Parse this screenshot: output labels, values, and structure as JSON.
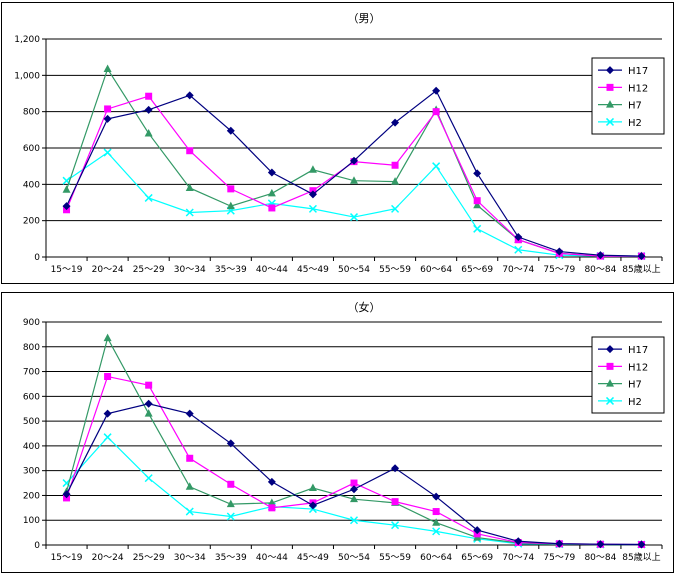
{
  "chart_data": [
    {
      "type": "line",
      "title": "（男）",
      "categories": [
        "15～19",
        "20～24",
        "25～29",
        "30～34",
        "35～39",
        "40～44",
        "45～49",
        "50～54",
        "55～59",
        "60～64",
        "65～69",
        "70～74",
        "75～79",
        "80～84",
        "85歳以上"
      ],
      "ylim": [
        0,
        1200
      ],
      "yticks": [
        0,
        200,
        400,
        600,
        800,
        1000,
        1200
      ],
      "ytick_labels": [
        "0",
        "200",
        "400",
        "600",
        "800",
        "1,000",
        "1,200"
      ],
      "grid": true,
      "legend": "right",
      "series": [
        {
          "name": "H17",
          "color": "#000080",
          "marker": "diamond",
          "values": [
            280,
            760,
            810,
            890,
            695,
            465,
            345,
            530,
            740,
            915,
            460,
            110,
            30,
            10,
            5
          ]
        },
        {
          "name": "H12",
          "color": "#ff00ff",
          "marker": "square",
          "values": [
            260,
            815,
            885,
            585,
            375,
            270,
            365,
            525,
            505,
            800,
            310,
            95,
            20,
            5,
            5
          ]
        },
        {
          "name": "H7",
          "color": "#339966",
          "marker": "triangle",
          "values": [
            370,
            1035,
            680,
            380,
            280,
            350,
            480,
            420,
            415,
            810,
            285,
            95,
            20,
            5,
            5
          ]
        },
        {
          "name": "H2",
          "color": "#00ffff",
          "marker": "x",
          "values": [
            420,
            575,
            325,
            245,
            255,
            295,
            265,
            220,
            265,
            500,
            155,
            40,
            10,
            5,
            5
          ]
        }
      ]
    },
    {
      "type": "line",
      "title": "（女）",
      "categories": [
        "15～19",
        "20～24",
        "25～29",
        "30～34",
        "35～39",
        "40～44",
        "45～49",
        "50～54",
        "55～59",
        "60～64",
        "65～69",
        "70～74",
        "75～79",
        "80～84",
        "85歳以上"
      ],
      "ylim": [
        0,
        900
      ],
      "yticks": [
        0,
        100,
        200,
        300,
        400,
        500,
        600,
        700,
        800,
        900
      ],
      "ytick_labels": [
        "0",
        "100",
        "200",
        "300",
        "400",
        "500",
        "600",
        "700",
        "800",
        "900"
      ],
      "grid": true,
      "legend": "right",
      "series": [
        {
          "name": "H17",
          "color": "#000080",
          "marker": "diamond",
          "values": [
            205,
            530,
            570,
            530,
            410,
            255,
            160,
            225,
            310,
            195,
            60,
            15,
            5,
            3,
            2
          ]
        },
        {
          "name": "H12",
          "color": "#ff00ff",
          "marker": "square",
          "values": [
            190,
            680,
            645,
            350,
            245,
            150,
            170,
            250,
            175,
            135,
            45,
            10,
            5,
            3,
            2
          ]
        },
        {
          "name": "H7",
          "color": "#339966",
          "marker": "triangle",
          "values": [
            215,
            835,
            530,
            235,
            165,
            170,
            230,
            185,
            170,
            90,
            30,
            8,
            3,
            2,
            2
          ]
        },
        {
          "name": "H2",
          "color": "#00ffff",
          "marker": "x",
          "values": [
            250,
            435,
            270,
            135,
            115,
            155,
            145,
            100,
            80,
            55,
            25,
            5,
            3,
            2,
            2
          ]
        }
      ]
    }
  ]
}
